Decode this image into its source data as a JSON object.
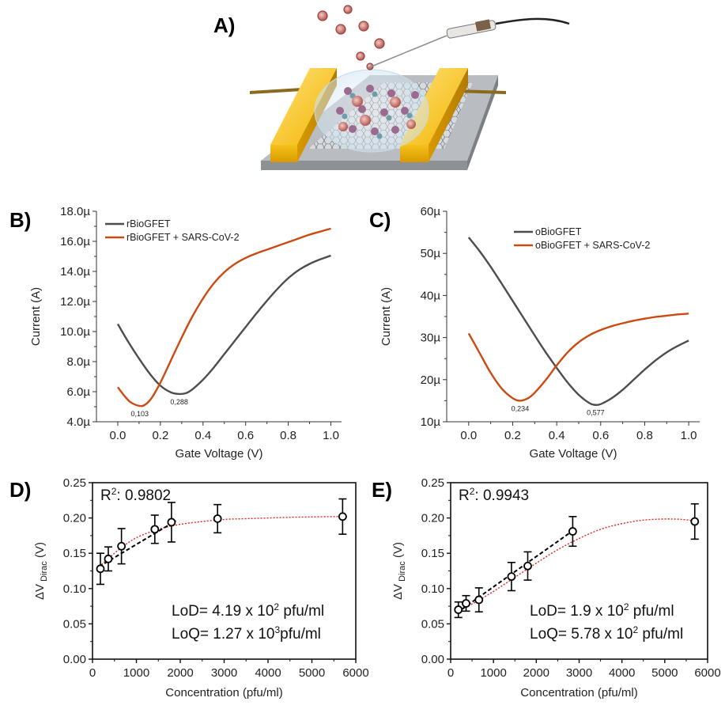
{
  "panel_letters": {
    "a": "A)",
    "b": "B)",
    "c": "C)",
    "d": "D)",
    "e": "E)"
  },
  "colors": {
    "gray": "#4d4d4d",
    "orange": "#cc4a12",
    "red_fit": "#e2261f",
    "black": "#000000"
  },
  "chart_data": [
    {
      "id": "B",
      "type": "line",
      "xlabel": "Gate Voltage (V)",
      "ylabel": "Current (A)",
      "xlim": [
        -0.1,
        1.05
      ],
      "ylim": [
        4.0,
        18.0
      ],
      "x_ticks": [
        0.0,
        0.2,
        0.4,
        0.6,
        0.8,
        1.0
      ],
      "x_tick_labels": [
        "0.0",
        "0.2",
        "0.4",
        "0.6",
        "0.8",
        "1.0"
      ],
      "y_ticks": [
        4,
        6,
        8,
        10,
        12,
        14,
        16,
        18
      ],
      "y_tick_labels": [
        "4.0µ",
        "6.0µ",
        "8.0µ",
        "10.0µ",
        "12.0µ",
        "14.0µ",
        "16.0µ",
        "18.0µ"
      ],
      "legend_position": "top-left",
      "series": [
        {
          "name": "rBioGFET",
          "color": "#4d4d4d",
          "x": [
            0.0,
            0.05,
            0.1,
            0.15,
            0.2,
            0.25,
            0.288,
            0.32,
            0.35,
            0.4,
            0.45,
            0.5,
            0.55,
            0.6,
            0.65,
            0.7,
            0.75,
            0.8,
            0.85,
            0.9,
            0.95,
            1.0
          ],
          "y": [
            10.5,
            9.3,
            8.2,
            7.2,
            6.4,
            5.95,
            5.85,
            5.9,
            6.15,
            6.8,
            7.6,
            8.5,
            9.4,
            10.3,
            11.2,
            12.05,
            12.85,
            13.55,
            14.1,
            14.5,
            14.8,
            15.05
          ]
        },
        {
          "name": "rBioGFET + SARS-CoV-2",
          "color": "#cc4a12",
          "x": [
            0.0,
            0.03,
            0.06,
            0.103,
            0.13,
            0.16,
            0.2,
            0.25,
            0.3,
            0.35,
            0.4,
            0.45,
            0.5,
            0.55,
            0.6,
            0.65,
            0.7,
            0.75,
            0.8,
            0.85,
            0.9,
            0.95,
            1.0
          ],
          "y": [
            6.3,
            5.75,
            5.3,
            5.05,
            5.15,
            5.6,
            6.6,
            8.1,
            9.6,
            11.0,
            12.2,
            13.2,
            13.95,
            14.5,
            14.9,
            15.2,
            15.45,
            15.7,
            15.95,
            16.2,
            16.45,
            16.65,
            16.85
          ]
        }
      ],
      "annotations": [
        {
          "text": "0,103",
          "x": 0.103,
          "y": 5.05
        },
        {
          "text": "0,288",
          "x": 0.288,
          "y": 5.85
        }
      ]
    },
    {
      "id": "C",
      "type": "line",
      "xlabel": "Gate Voltage (V)",
      "ylabel": "Current (A)",
      "xlim": [
        -0.1,
        1.05
      ],
      "ylim": [
        10,
        60
      ],
      "x_ticks": [
        0.0,
        0.2,
        0.4,
        0.6,
        0.8,
        1.0
      ],
      "x_tick_labels": [
        "0.0",
        "0.2",
        "0.4",
        "0.6",
        "0.8",
        "1.0"
      ],
      "y_ticks": [
        10,
        20,
        30,
        40,
        50,
        60
      ],
      "y_tick_labels": [
        "10µ",
        "20µ",
        "30µ",
        "40µ",
        "50µ",
        "60µ"
      ],
      "legend_position": "top-right",
      "series": [
        {
          "name": "oBioGFET",
          "color": "#4d4d4d",
          "x": [
            0.0,
            0.05,
            0.1,
            0.15,
            0.2,
            0.25,
            0.3,
            0.35,
            0.4,
            0.45,
            0.5,
            0.55,
            0.577,
            0.6,
            0.65,
            0.7,
            0.75,
            0.8,
            0.85,
            0.9,
            0.95,
            1.0
          ],
          "y": [
            53.8,
            50.5,
            46.8,
            42.8,
            38.7,
            34.6,
            30.5,
            26.5,
            22.8,
            19.3,
            16.4,
            14.4,
            14.0,
            14.2,
            15.6,
            17.6,
            20.0,
            22.4,
            24.6,
            26.5,
            28.0,
            29.3
          ]
        },
        {
          "name": "oBioGFET + SARS-CoV-2",
          "color": "#cc4a12",
          "x": [
            0.0,
            0.05,
            0.1,
            0.15,
            0.2,
            0.234,
            0.27,
            0.3,
            0.35,
            0.4,
            0.45,
            0.5,
            0.55,
            0.6,
            0.65,
            0.7,
            0.75,
            0.8,
            0.85,
            0.9,
            0.95,
            1.0
          ],
          "y": [
            31.0,
            26.3,
            21.6,
            17.9,
            15.6,
            15.0,
            15.6,
            16.9,
            19.9,
            23.4,
            26.5,
            28.9,
            30.6,
            31.8,
            32.7,
            33.4,
            34.0,
            34.5,
            34.9,
            35.2,
            35.5,
            35.7
          ]
        }
      ],
      "annotations": [
        {
          "text": "0,234",
          "x": 0.234,
          "y": 15.0
        },
        {
          "text": "0,577",
          "x": 0.577,
          "y": 14.0
        }
      ]
    },
    {
      "id": "D",
      "type": "scatter",
      "xlabel": "Concentration (pfu/ml)",
      "ylabel_main": "ΔV",
      "ylabel_sub": "Dirac",
      "ylabel_unit": "(V)",
      "xlim": [
        0,
        6000
      ],
      "ylim": [
        0.0,
        0.25
      ],
      "x_ticks": [
        0,
        1000,
        2000,
        3000,
        4000,
        5000,
        6000
      ],
      "x_tick_labels": [
        "0",
        "1000",
        "2000",
        "3000",
        "4000",
        "5000",
        "6000"
      ],
      "y_ticks": [
        0.0,
        0.05,
        0.1,
        0.15,
        0.2,
        0.25
      ],
      "y_tick_labels": [
        "0.00",
        "0.05",
        "0.10",
        "0.15",
        "0.20",
        "0.25"
      ],
      "points": [
        {
          "x": 180,
          "y": 0.128,
          "err": 0.022
        },
        {
          "x": 360,
          "y": 0.142,
          "err": 0.017
        },
        {
          "x": 660,
          "y": 0.16,
          "err": 0.025
        },
        {
          "x": 1420,
          "y": 0.184,
          "err": 0.02
        },
        {
          "x": 1800,
          "y": 0.194,
          "err": 0.028
        },
        {
          "x": 2850,
          "y": 0.199,
          "err": 0.02
        },
        {
          "x": 5700,
          "y": 0.202,
          "err": 0.025
        }
      ],
      "linear_fit": {
        "x": [
          150,
          1900
        ],
        "y": [
          0.131,
          0.196
        ]
      },
      "saturation_fit": {
        "x": [
          150,
          600,
          1000,
          1500,
          2000,
          2500,
          3000,
          3500,
          4000,
          4500,
          5000,
          5500,
          5800
        ],
        "y": [
          0.131,
          0.155,
          0.172,
          0.184,
          0.191,
          0.195,
          0.198,
          0.199,
          0.2,
          0.201,
          0.2015,
          0.202,
          0.202
        ]
      },
      "r2_prefix": "R",
      "r2_sup": "2",
      "r2_value": ": 0.9802",
      "lod": {
        "prefix": "LoD= 4.19 x 10",
        "sup": "2",
        "unit": " pfu/ml"
      },
      "loq": {
        "prefix": "LoQ= 1.27 x 10",
        "sup": "3",
        "unit": "pfu/ml"
      }
    },
    {
      "id": "E",
      "type": "scatter",
      "xlabel": "Concentration (pfu/ml)",
      "ylabel_main": "ΔV",
      "ylabel_sub": "Dirac",
      "ylabel_unit": "(V)",
      "xlim": [
        0,
        6000
      ],
      "ylim": [
        0.0,
        0.25
      ],
      "x_ticks": [
        0,
        1000,
        2000,
        3000,
        4000,
        5000,
        6000
      ],
      "x_tick_labels": [
        "0",
        "1000",
        "2000",
        "3000",
        "4000",
        "5000",
        "6000"
      ],
      "y_ticks": [
        0.0,
        0.05,
        0.1,
        0.15,
        0.2,
        0.25
      ],
      "y_tick_labels": [
        "0.00",
        "0.05",
        "0.10",
        "0.15",
        "0.20",
        "0.25"
      ],
      "points": [
        {
          "x": 180,
          "y": 0.07,
          "err": 0.011
        },
        {
          "x": 360,
          "y": 0.079,
          "err": 0.011
        },
        {
          "x": 660,
          "y": 0.084,
          "err": 0.017
        },
        {
          "x": 1420,
          "y": 0.117,
          "err": 0.02
        },
        {
          "x": 1800,
          "y": 0.132,
          "err": 0.02
        },
        {
          "x": 2850,
          "y": 0.181,
          "err": 0.021
        },
        {
          "x": 5700,
          "y": 0.195,
          "err": 0.025
        }
      ],
      "linear_fit": {
        "x": [
          150,
          2900
        ],
        "y": [
          0.066,
          0.184
        ]
      },
      "saturation_fit": {
        "x": [
          150,
          500,
          1000,
          1500,
          2000,
          2500,
          3000,
          3500,
          4000,
          4500,
          5000,
          5400,
          5700
        ],
        "y": [
          0.067,
          0.078,
          0.096,
          0.116,
          0.136,
          0.155,
          0.171,
          0.184,
          0.192,
          0.197,
          0.1985,
          0.198,
          0.196
        ]
      },
      "r2_prefix": "R",
      "r2_sup": "2",
      "r2_value": ": 0.9943",
      "lod": {
        "prefix": "LoD= 1.9 x 10",
        "sup": "2",
        "unit": " pfu/ml"
      },
      "loq": {
        "prefix": "LoQ= 5.78 x 10",
        "sup": "2",
        "unit": " pfu/ml"
      }
    }
  ]
}
